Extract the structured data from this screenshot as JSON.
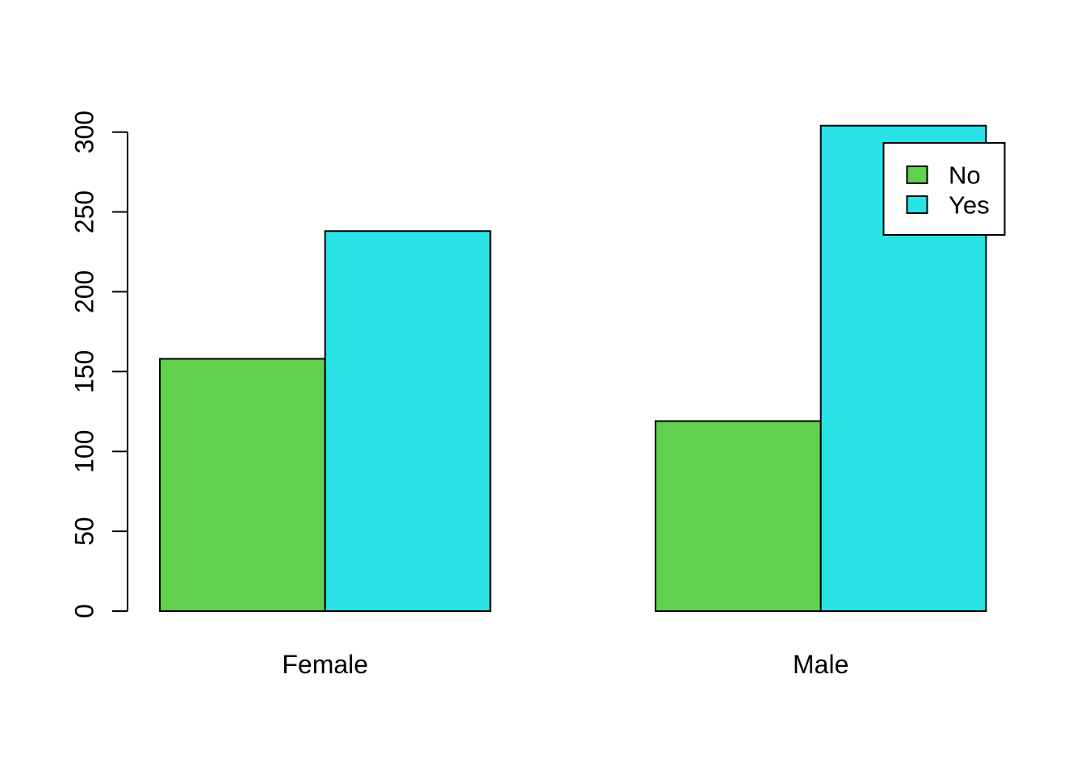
{
  "chart_data": {
    "type": "bar",
    "grouped": true,
    "title": "",
    "xlabel": "",
    "ylabel": "",
    "categories": [
      "Female",
      "Male"
    ],
    "series": [
      {
        "name": "No",
        "color": "#61D04F",
        "values": [
          158,
          119
        ]
      },
      {
        "name": "Yes",
        "color": "#28E2E5",
        "values": [
          238,
          304
        ]
      }
    ],
    "ylim": [
      0,
      300
    ],
    "yticks": [
      0,
      50,
      100,
      150,
      200,
      250,
      300
    ],
    "ytick_labels": [
      "0",
      "50",
      "100",
      "150",
      "200",
      "250",
      "300"
    ],
    "ytick_label_rotation_deg": 90,
    "grid": false,
    "background": "#FFFFFF",
    "axis_color": "#000000",
    "bar_border_color": "#000000",
    "legend": {
      "position": "top-right",
      "border": true,
      "background": "#FFFFFF",
      "entries": [
        {
          "label": "No",
          "color": "#61D04F"
        },
        {
          "label": "Yes",
          "color": "#28E2E5"
        }
      ]
    }
  }
}
